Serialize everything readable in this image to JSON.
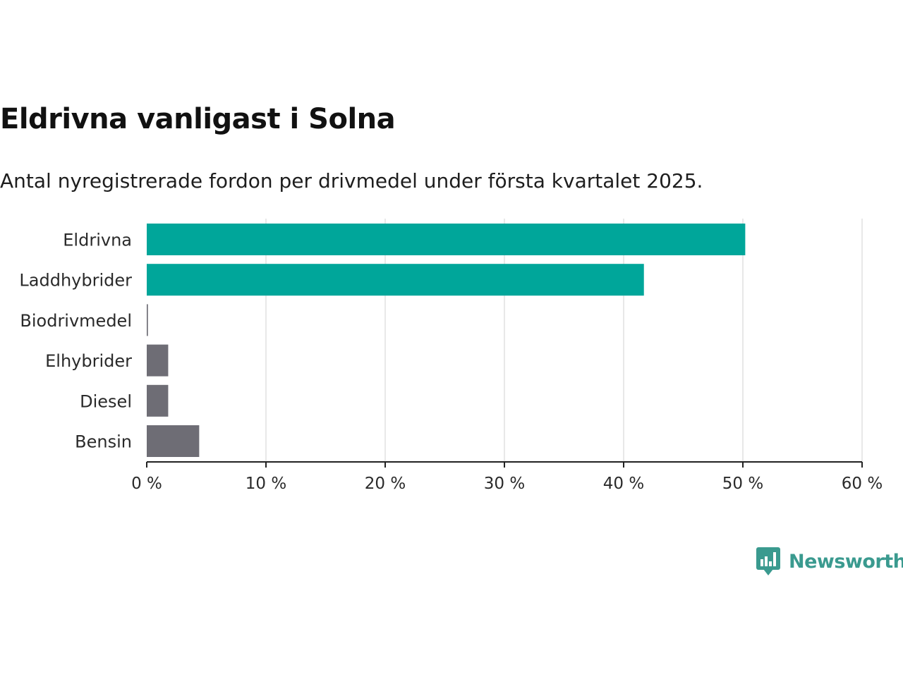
{
  "header": {
    "title": "Eldrivna vanligast i Solna",
    "subtitle": "Antal nyregistrerade fordon per drivmedel under första kvartalet 2025."
  },
  "branding": {
    "logo_text": "Newsworthy",
    "logo_icon": "bar-chart-speech-bubble-icon",
    "logo_color": "#3a9a8f"
  },
  "colors": {
    "highlight": "#00a69a",
    "other": "#6e6d75",
    "axis": "#222222",
    "grid": "#d9d9d9"
  },
  "chart_data": {
    "type": "bar",
    "orientation": "horizontal",
    "categories": [
      "Eldrivna",
      "Laddhybrider",
      "Biodrivmedel",
      "Elhybrider",
      "Diesel",
      "Bensin"
    ],
    "values": [
      50.2,
      41.7,
      0.1,
      1.8,
      1.8,
      4.4
    ],
    "highlighted": [
      true,
      true,
      false,
      false,
      false,
      false
    ],
    "xlim": [
      0,
      60
    ],
    "xticks": [
      0,
      10,
      20,
      30,
      40,
      50,
      60
    ],
    "xtick_labels": [
      "0 %",
      "10 %",
      "20 %",
      "30 %",
      "40 %",
      "50 %",
      "60 %"
    ],
    "unit": "%",
    "grid": true,
    "legend": false
  }
}
